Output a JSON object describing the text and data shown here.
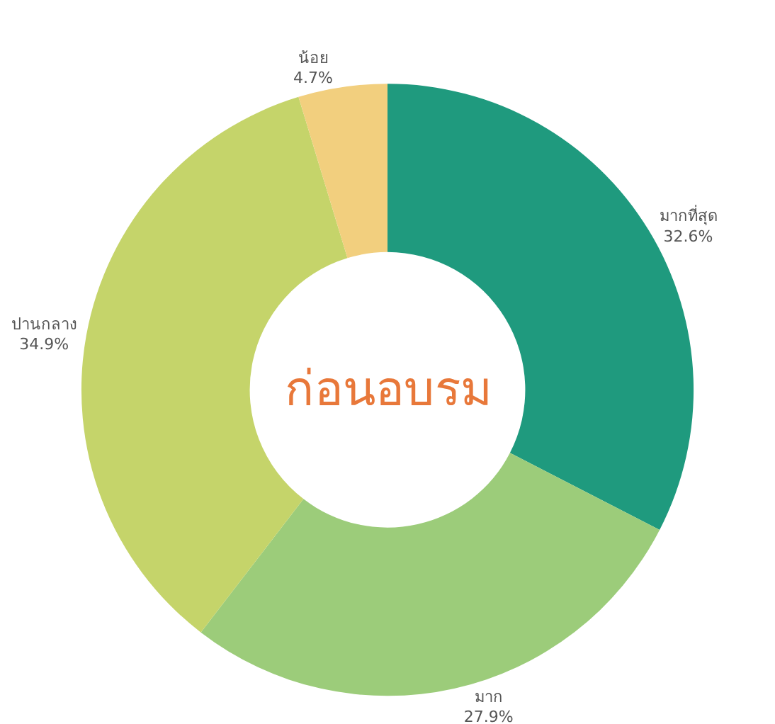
{
  "chart_data": {
    "type": "donut",
    "title": "ก่อนอบรม",
    "categories": [
      "มากที่สุด",
      "มาก",
      "ปานกลาง",
      "น้อย"
    ],
    "values": [
      32.6,
      27.9,
      34.9,
      4.7
    ],
    "value_labels": [
      "32.6%",
      "27.9%",
      "34.9%",
      "4.7%"
    ],
    "colors": [
      "#1f9a7e",
      "#9ccc7a",
      "#c5d46a",
      "#f2cf7e"
    ],
    "legend": false
  }
}
